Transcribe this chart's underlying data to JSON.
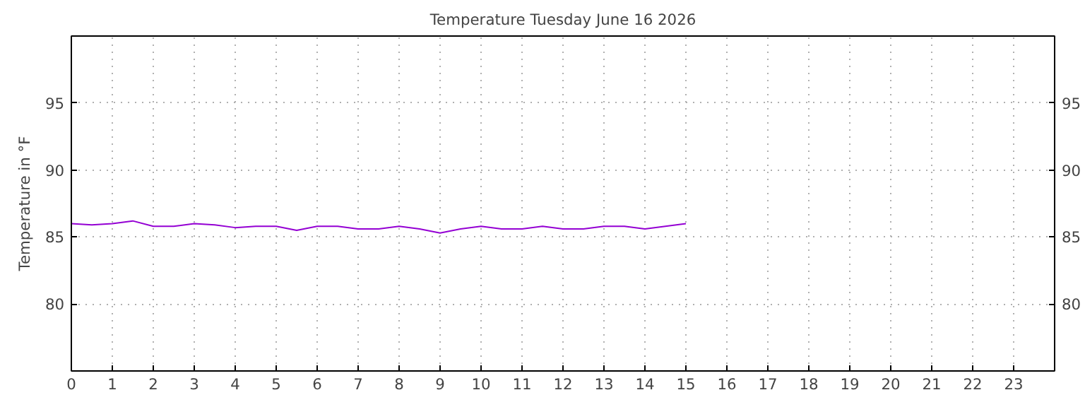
{
  "chart_data": {
    "type": "line",
    "title": "Temperature Tuesday June 16 2026",
    "ylabel": "Temperature in °F",
    "x": [
      0,
      0.5,
      1,
      1.5,
      2,
      2.5,
      3,
      3.5,
      4,
      4.5,
      5,
      5.5,
      6,
      6.5,
      7,
      7.5,
      8,
      8.5,
      9,
      9.5,
      10,
      10.5,
      11,
      11.5,
      12,
      12.5,
      13,
      13.5,
      14,
      14.5,
      15
    ],
    "series": [
      {
        "color": "#9400d3",
        "values": [
          86.0,
          85.9,
          86.0,
          86.2,
          85.8,
          85.8,
          86.0,
          85.9,
          85.7,
          85.8,
          85.8,
          85.5,
          85.8,
          85.8,
          85.6,
          85.6,
          85.8,
          85.6,
          85.3,
          85.6,
          85.8,
          85.6,
          85.6,
          85.8,
          85.6,
          85.6,
          85.8,
          85.8,
          85.6,
          85.8,
          86.0
        ]
      }
    ],
    "xlim": [
      0,
      24
    ],
    "xticks": [
      0,
      1,
      2,
      3,
      4,
      5,
      6,
      7,
      8,
      9,
      10,
      11,
      12,
      13,
      14,
      15,
      16,
      17,
      18,
      19,
      20,
      21,
      22,
      23
    ],
    "ylim": [
      75,
      100
    ],
    "yticks": [
      80,
      85,
      90,
      95
    ],
    "y2lim": [
      75,
      100
    ],
    "y2ticks": [
      80,
      85,
      90,
      95
    ],
    "grid": true,
    "marker": "none",
    "line_style": "solid"
  }
}
